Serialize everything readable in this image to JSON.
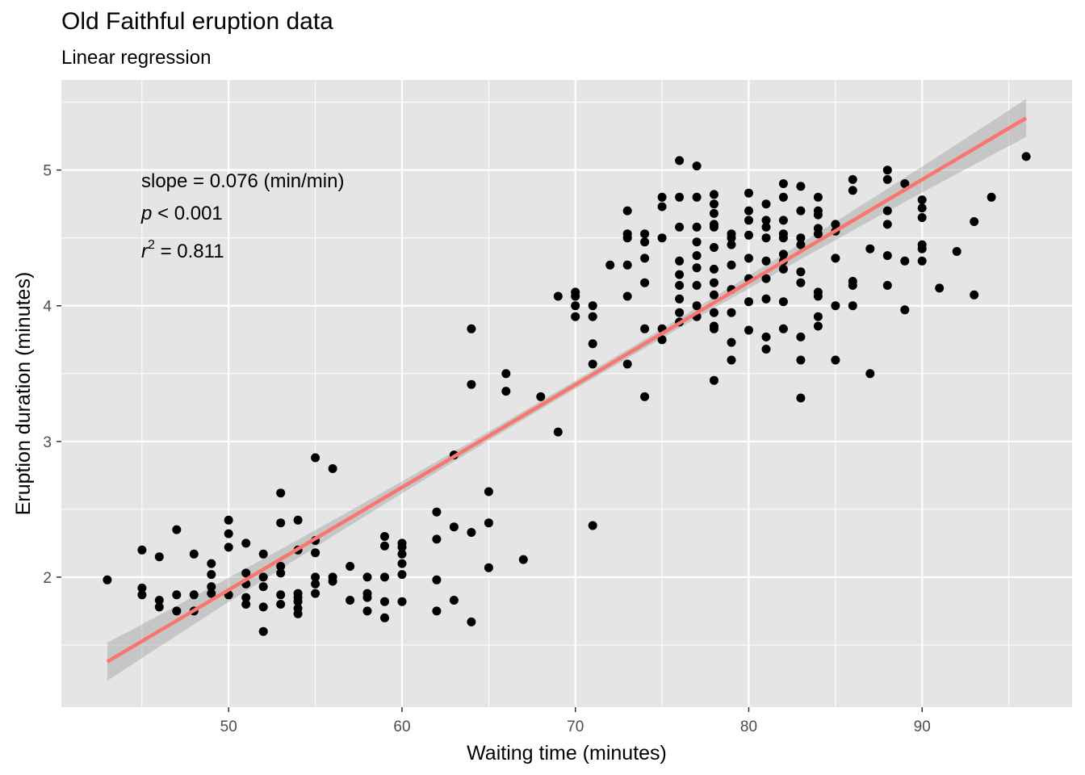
{
  "chart_data": {
    "type": "scatter",
    "title": "Old Faithful eruption data",
    "subtitle": "Linear regression",
    "xlabel": "Waiting time (minutes)",
    "ylabel": "Eruption duration (minutes)",
    "xlim": [
      40.35,
      98.65
    ],
    "ylim": [
      1.0417,
      5.6643
    ],
    "xticks": [
      50,
      60,
      70,
      80,
      90
    ],
    "yticks": [
      2,
      3,
      4,
      5
    ],
    "grid": true,
    "background": "#E5E5E5",
    "grid_color": "#FFFFFF",
    "point_color": "#000000",
    "line_color": "#F8766D",
    "band_color": "#999999",
    "annotations": {
      "slope": "slope = 0.076 (min/min)",
      "p": "p < 0.001",
      "r2": "r2 = 0.811"
    },
    "regression": {
      "intercept": -1.874,
      "slope": 0.0756,
      "x_range": [
        43,
        96
      ],
      "ci_halfwidth_ends": 0.14,
      "ci_halfwidth_mid": 0.03
    },
    "points": [
      [
        43,
        1.98
      ],
      [
        45,
        2.2
      ],
      [
        45,
        1.92
      ],
      [
        45,
        1.87
      ],
      [
        46,
        2.15
      ],
      [
        46,
        1.83
      ],
      [
        46,
        1.78
      ],
      [
        47,
        2.35
      ],
      [
        47,
        1.87
      ],
      [
        47,
        1.75
      ],
      [
        48,
        2.17
      ],
      [
        48,
        1.87
      ],
      [
        48,
        1.75
      ],
      [
        49,
        2.1
      ],
      [
        49,
        2.02
      ],
      [
        49,
        1.93
      ],
      [
        49,
        1.88
      ],
      [
        50,
        2.42
      ],
      [
        50,
        2.32
      ],
      [
        50,
        2.22
      ],
      [
        50,
        1.87
      ],
      [
        51,
        2.25
      ],
      [
        51,
        2.03
      ],
      [
        51,
        1.95
      ],
      [
        51,
        1.85
      ],
      [
        51,
        1.8
      ],
      [
        52,
        2.17
      ],
      [
        52,
        2.0
      ],
      [
        52,
        1.93
      ],
      [
        52,
        1.78
      ],
      [
        52,
        1.6
      ],
      [
        53,
        2.62
      ],
      [
        53,
        2.4
      ],
      [
        53,
        2.08
      ],
      [
        53,
        2.03
      ],
      [
        53,
        1.87
      ],
      [
        53,
        1.8
      ],
      [
        54,
        2.42
      ],
      [
        54,
        2.2
      ],
      [
        54,
        1.88
      ],
      [
        54,
        1.85
      ],
      [
        54,
        1.82
      ],
      [
        54,
        1.77
      ],
      [
        54,
        1.73
      ],
      [
        55,
        2.88
      ],
      [
        55,
        2.27
      ],
      [
        55,
        2.18
      ],
      [
        55,
        2.0
      ],
      [
        55,
        1.95
      ],
      [
        55,
        1.88
      ],
      [
        56,
        2.8
      ],
      [
        56,
        2.0
      ],
      [
        56,
        1.97
      ],
      [
        57,
        2.08
      ],
      [
        57,
        1.83
      ],
      [
        58,
        2.0
      ],
      [
        58,
        1.88
      ],
      [
        58,
        1.85
      ],
      [
        58,
        1.75
      ],
      [
        59,
        2.3
      ],
      [
        59,
        2.23
      ],
      [
        59,
        2.0
      ],
      [
        59,
        1.82
      ],
      [
        59,
        1.7
      ],
      [
        60,
        2.25
      ],
      [
        60,
        2.22
      ],
      [
        60,
        2.17
      ],
      [
        60,
        2.1
      ],
      [
        60,
        2.02
      ],
      [
        60,
        1.82
      ],
      [
        62,
        2.48
      ],
      [
        62,
        2.28
      ],
      [
        62,
        1.98
      ],
      [
        62,
        1.75
      ],
      [
        63,
        2.9
      ],
      [
        63,
        2.37
      ],
      [
        63,
        1.83
      ],
      [
        64,
        3.83
      ],
      [
        64,
        3.42
      ],
      [
        64,
        2.33
      ],
      [
        64,
        1.67
      ],
      [
        65,
        2.63
      ],
      [
        65,
        2.4
      ],
      [
        65,
        2.07
      ],
      [
        66,
        3.5
      ],
      [
        66,
        3.37
      ],
      [
        67,
        2.13
      ],
      [
        68,
        3.33
      ],
      [
        69,
        4.07
      ],
      [
        69,
        3.07
      ],
      [
        70,
        4.1
      ],
      [
        70,
        4.07
      ],
      [
        70,
        4.0
      ],
      [
        70,
        3.92
      ],
      [
        71,
        4.0
      ],
      [
        71,
        3.92
      ],
      [
        71,
        3.72
      ],
      [
        71,
        3.57
      ],
      [
        71,
        2.38
      ],
      [
        72,
        4.3
      ],
      [
        73,
        4.7
      ],
      [
        73,
        4.53
      ],
      [
        73,
        4.5
      ],
      [
        73,
        4.3
      ],
      [
        73,
        4.07
      ],
      [
        73,
        3.57
      ],
      [
        74,
        4.53
      ],
      [
        74,
        4.47
      ],
      [
        74,
        4.35
      ],
      [
        74,
        4.17
      ],
      [
        74,
        3.83
      ],
      [
        74,
        3.33
      ],
      [
        75,
        4.8
      ],
      [
        75,
        4.73
      ],
      [
        75,
        4.5
      ],
      [
        75,
        3.83
      ],
      [
        75,
        3.75
      ],
      [
        76,
        5.07
      ],
      [
        76,
        4.8
      ],
      [
        76,
        4.58
      ],
      [
        76,
        4.33
      ],
      [
        76,
        4.23
      ],
      [
        76,
        4.15
      ],
      [
        76,
        4.05
      ],
      [
        76,
        3.95
      ],
      [
        76,
        3.88
      ],
      [
        77,
        5.03
      ],
      [
        77,
        4.8
      ],
      [
        77,
        4.58
      ],
      [
        77,
        4.47
      ],
      [
        77,
        4.37
      ],
      [
        77,
        4.28
      ],
      [
        77,
        4.15
      ],
      [
        77,
        4.0
      ],
      [
        77,
        3.92
      ],
      [
        78,
        4.82
      ],
      [
        78,
        4.75
      ],
      [
        78,
        4.68
      ],
      [
        78,
        4.6
      ],
      [
        78,
        4.58
      ],
      [
        78,
        4.43
      ],
      [
        78,
        4.27
      ],
      [
        78,
        4.17
      ],
      [
        78,
        4.08
      ],
      [
        78,
        3.95
      ],
      [
        78,
        3.85
      ],
      [
        78,
        3.83
      ],
      [
        78,
        3.45
      ],
      [
        79,
        4.53
      ],
      [
        79,
        4.5
      ],
      [
        79,
        4.45
      ],
      [
        79,
        4.3
      ],
      [
        79,
        4.12
      ],
      [
        79,
        3.95
      ],
      [
        79,
        3.73
      ],
      [
        79,
        3.6
      ],
      [
        80,
        4.83
      ],
      [
        80,
        4.7
      ],
      [
        80,
        4.63
      ],
      [
        80,
        4.52
      ],
      [
        80,
        4.35
      ],
      [
        80,
        4.2
      ],
      [
        80,
        4.03
      ],
      [
        80,
        3.82
      ],
      [
        81,
        4.75
      ],
      [
        81,
        4.63
      ],
      [
        81,
        4.58
      ],
      [
        81,
        4.5
      ],
      [
        81,
        4.33
      ],
      [
        81,
        4.2
      ],
      [
        81,
        4.05
      ],
      [
        81,
        3.77
      ],
      [
        81,
        3.68
      ],
      [
        82,
        4.9
      ],
      [
        82,
        4.8
      ],
      [
        82,
        4.63
      ],
      [
        82,
        4.53
      ],
      [
        82,
        4.5
      ],
      [
        82,
        4.38
      ],
      [
        82,
        4.33
      ],
      [
        82,
        4.27
      ],
      [
        82,
        4.03
      ],
      [
        82,
        3.83
      ],
      [
        83,
        4.88
      ],
      [
        83,
        4.7
      ],
      [
        83,
        4.5
      ],
      [
        83,
        4.45
      ],
      [
        83,
        4.25
      ],
      [
        83,
        4.17
      ],
      [
        83,
        3.77
      ],
      [
        83,
        3.6
      ],
      [
        83,
        3.32
      ],
      [
        84,
        4.8
      ],
      [
        84,
        4.7
      ],
      [
        84,
        4.67
      ],
      [
        84,
        4.57
      ],
      [
        84,
        4.53
      ],
      [
        84,
        4.1
      ],
      [
        84,
        4.07
      ],
      [
        84,
        3.92
      ],
      [
        84,
        3.85
      ],
      [
        85,
        4.6
      ],
      [
        85,
        4.55
      ],
      [
        85,
        4.35
      ],
      [
        85,
        4.0
      ],
      [
        85,
        3.6
      ],
      [
        86,
        4.93
      ],
      [
        86,
        4.85
      ],
      [
        86,
        4.18
      ],
      [
        86,
        4.15
      ],
      [
        86,
        4.0
      ],
      [
        87,
        4.42
      ],
      [
        87,
        3.5
      ],
      [
        88,
        5.0
      ],
      [
        88,
        4.93
      ],
      [
        88,
        4.7
      ],
      [
        88,
        4.6
      ],
      [
        88,
        4.37
      ],
      [
        88,
        4.15
      ],
      [
        89,
        4.9
      ],
      [
        89,
        4.33
      ],
      [
        89,
        3.97
      ],
      [
        90,
        4.78
      ],
      [
        90,
        4.72
      ],
      [
        90,
        4.65
      ],
      [
        90,
        4.45
      ],
      [
        90,
        4.42
      ],
      [
        90,
        4.33
      ],
      [
        91,
        4.13
      ],
      [
        92,
        4.4
      ],
      [
        93,
        4.62
      ],
      [
        93,
        4.08
      ],
      [
        94,
        4.8
      ],
      [
        96,
        5.1
      ]
    ]
  }
}
